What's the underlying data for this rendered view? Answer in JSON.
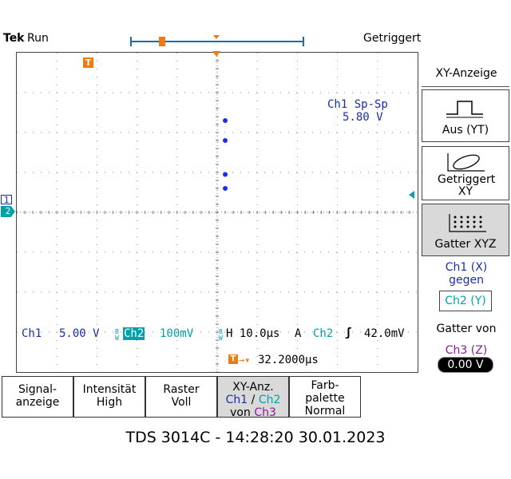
{
  "header": {
    "brand": "Tek",
    "status": "Run",
    "trigger_status": "Getriggert"
  },
  "measurement": {
    "label": "Ch1 Sp-Sp",
    "value": "5.80 V"
  },
  "status_line": {
    "ch1_label": "Ch1",
    "ch1_scale": "5.00 V",
    "ch2_label": "Ch2",
    "ch2_scale": "100mV",
    "timebase": "H 10.0µs",
    "trigger_mode": "A",
    "trigger_source": "Ch2",
    "trigger_level": "42.0mV",
    "trigger_offset": "32.2000µs",
    "bw_mark": "B W"
  },
  "markers": {
    "trigger_marker": "T",
    "ch1_marker": "1",
    "ch2_marker": "2"
  },
  "side_menu": {
    "title": "XY-Anzeige",
    "options": [
      {
        "label": "Aus (YT)",
        "icon": "yt-waveform-icon",
        "selected": false
      },
      {
        "label": "Getriggert XY",
        "icon": "xy-ellipse-icon",
        "selected": false
      },
      {
        "label": "Gatter XYZ",
        "icon": "dot-matrix-icon",
        "selected": true
      }
    ],
    "ch1_line": "Ch1 (X)",
    "gegen": "gegen",
    "ch2_line": "Ch2 (Y)",
    "gatter_von": "Gatter von",
    "ch3_line": "Ch3 (Z)",
    "ch3_value": "0.00 V"
  },
  "bottom_menu": [
    {
      "line1": "Signal-",
      "line2": "anzeige"
    },
    {
      "line1": "Intensität",
      "line2": "High"
    },
    {
      "line1": "Raster",
      "line2": "Voll"
    },
    {
      "line1": "XY-Anz.",
      "ch1": "Ch1",
      "sep": "/",
      "ch2": "Ch2",
      "von": "von",
      "ch3": "Ch3",
      "selected": true
    },
    {
      "line1": "Farb-",
      "line2": "palette",
      "line3": "Normal"
    }
  ],
  "footer": "TDS 3014C - 14:28:20   30.01.2023",
  "colors": {
    "ch1": "#1a2ea8",
    "ch2": "#00a2a8",
    "ch3": "#8b1a9a",
    "trigger": "#f07a10",
    "trace": "#1e2cf0"
  },
  "chart_data": {
    "type": "scatter",
    "grid": true,
    "x_divisions": 10,
    "y_divisions": 8,
    "series": [
      {
        "points": [
          [
            0.2,
            2.3
          ],
          [
            0.2,
            1.8
          ],
          [
            0.2,
            0.95
          ],
          [
            0.2,
            0.6
          ]
        ]
      }
    ],
    "xlim": [
      -5,
      5
    ],
    "ylim": [
      -4,
      4
    ]
  }
}
